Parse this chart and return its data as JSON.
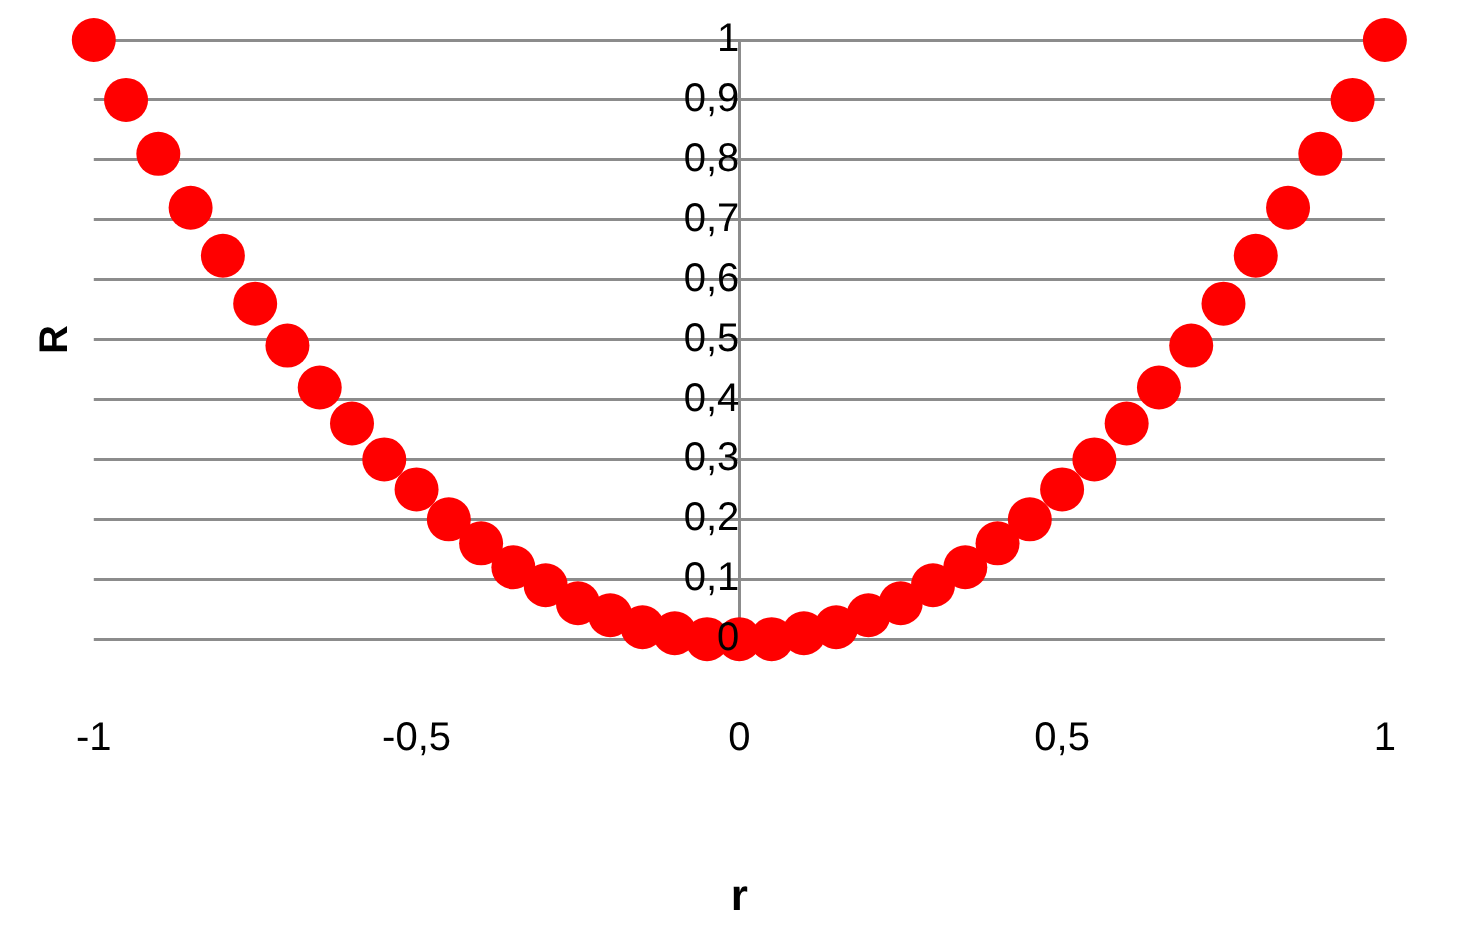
{
  "chart_data": {
    "type": "scatter",
    "xlabel": "r",
    "ylabel": "R",
    "xlim": [
      -1,
      1
    ],
    "xticks": [
      -1,
      {
        "value": -0.5,
        "label": "-0,5"
      },
      0,
      {
        "value": 0.5,
        "label": "0,5"
      },
      1
    ],
    "ylim": [
      0,
      1
    ],
    "yticks": [
      0,
      {
        "value": 0.1,
        "label": "0,1"
      },
      {
        "value": 0.2,
        "label": "0,2"
      },
      {
        "value": 0.3,
        "label": "0,3"
      },
      {
        "value": 0.4,
        "label": "0,4"
      },
      {
        "value": 0.5,
        "label": "0,5"
      },
      {
        "value": 0.6,
        "label": "0,6"
      },
      {
        "value": 0.7,
        "label": "0,7"
      },
      {
        "value": 0.8,
        "label": "0,8"
      },
      {
        "value": 0.9,
        "label": "0,9"
      },
      1
    ],
    "grid": "y",
    "legend": false,
    "marker": "circle",
    "series": [
      {
        "color": "#ff0000",
        "x": [
          -1,
          -0.95,
          -0.9,
          -0.85,
          -0.8,
          -0.75,
          -0.7,
          -0.65,
          -0.6,
          -0.55,
          -0.5,
          -0.45,
          -0.4,
          -0.35,
          -0.3,
          -0.25,
          -0.2,
          -0.15,
          -0.1,
          -0.05,
          0,
          0.05,
          0.1,
          0.15,
          0.2,
          0.25,
          0.3,
          0.35,
          0.4,
          0.45,
          0.5,
          0.55,
          0.6,
          0.65,
          0.7,
          0.75,
          0.8,
          0.85,
          0.9,
          0.95,
          1
        ],
        "values": [
          1,
          0.9,
          0.81,
          0.72,
          0.64,
          0.56,
          0.49,
          0.42,
          0.36,
          0.3,
          0.25,
          0.2,
          0.16,
          0.12,
          0.09,
          0.06,
          0.04,
          0.02,
          0.01,
          0,
          0,
          0,
          0.01,
          0.02,
          0.04,
          0.06,
          0.09,
          0.12,
          0.16,
          0.2,
          0.25,
          0.3,
          0.36,
          0.42,
          0.49,
          0.56,
          0.64,
          0.72,
          0.81,
          0.9,
          1
        ]
      }
    ]
  }
}
